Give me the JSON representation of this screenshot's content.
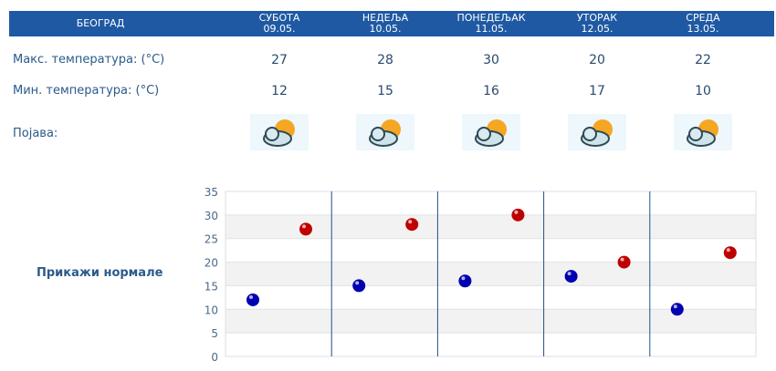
{
  "city": "БЕОГРАД",
  "days": [
    {
      "name": "СУБОТА",
      "date": "09.05.",
      "max": "27",
      "min": "12",
      "icon": "sun-cloud-icon"
    },
    {
      "name": "НЕДЕЉА",
      "date": "10.05.",
      "max": "28",
      "min": "15",
      "icon": "sun-cloud-icon"
    },
    {
      "name": "ПОНЕДЕЉАК",
      "date": "11.05.",
      "max": "30",
      "min": "16",
      "icon": "cloudy-sun-icon"
    },
    {
      "name": "УТОРАК",
      "date": "12.05.",
      "max": "20",
      "min": "17",
      "icon": "cloud-rain-sun-icon"
    },
    {
      "name": "СРЕДА",
      "date": "13.05.",
      "max": "22",
      "min": "10",
      "icon": "cloudy-sun-icon"
    }
  ],
  "labels": {
    "max": "Макс. температура: (°C)",
    "min": "Мин. температура: (°C)",
    "phenomenon": "Појава:"
  },
  "show_normals": "Прикажи нормале",
  "colors": {
    "header": "#1f59a3",
    "min": "#0000b0",
    "max": "#c00000"
  },
  "chart_data": {
    "type": "scatter",
    "categories": [
      "09.05.",
      "10.05.",
      "11.05.",
      "12.05.",
      "13.05."
    ],
    "series": [
      {
        "values": [
          12,
          15,
          16,
          17,
          10
        ],
        "color": "#0000b0"
      },
      {
        "values": [
          27,
          28,
          30,
          20,
          22
        ],
        "color": "#c00000"
      }
    ],
    "yticks": [
      "0",
      "5",
      "10",
      "15",
      "20",
      "25",
      "30",
      "35"
    ],
    "ylim": [
      0,
      35
    ],
    "grid": true
  }
}
